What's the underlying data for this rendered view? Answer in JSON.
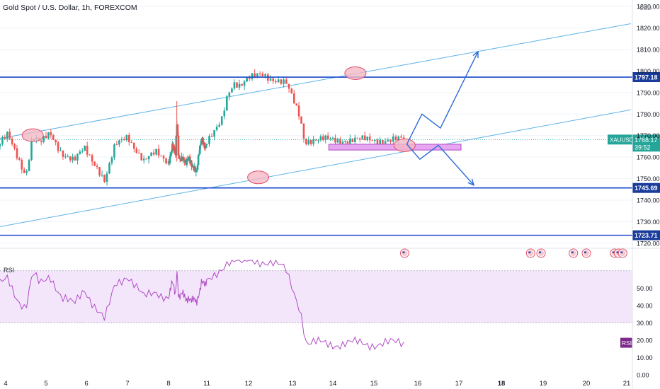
{
  "header": {
    "title": "Gold Spot / U.S. Dollar, 1h, FOREXCOM"
  },
  "colors": {
    "up": "#26a69a",
    "down": "#ef5350",
    "level_line": "#1848cc",
    "channel": "#5cb2e8",
    "zone": "#e6a7f0",
    "highlight": "#f4b8c6",
    "rsi": "#b04cc4",
    "rsi_band": "#f3e6fb",
    "arrow": "#2a6ad8"
  },
  "chart_data": [
    {
      "type": "candlestick",
      "title": "Gold Spot / U.S. Dollar, 1h, FOREXCOM",
      "symbol": "XAUUSD",
      "currency": "USD",
      "last_price": 1768.17,
      "countdown": "39:52",
      "ylim": [
        1718,
        1833
      ],
      "y_ticks": [
        1720,
        1730,
        1740,
        1750,
        1760,
        1770,
        1780,
        1790,
        1800,
        1810,
        1820,
        1830
      ],
      "y_tick_labels": [
        "1720.00",
        "1730.00",
        "1740.00",
        "1750.00",
        "1760.00",
        "1770.00",
        "1780.00",
        "1790.00",
        "1800.00",
        "1810.00",
        "1820.00",
        "1830.00"
      ],
      "x_ticks": [
        4,
        5,
        6,
        7,
        8,
        11,
        12,
        13,
        14,
        15,
        16,
        17,
        18,
        19,
        20,
        21
      ],
      "x_tick_labels": [
        "4",
        "5",
        "6",
        "7",
        "8",
        "11",
        "12",
        "13",
        "14",
        "15",
        "16",
        "17",
        "18",
        "19",
        "20",
        "21"
      ],
      "horizontal_levels": [
        {
          "value": 1797.18,
          "label": "1797.18"
        },
        {
          "value": 1745.69,
          "label": "1745.69"
        },
        {
          "value": 1723.71,
          "label": "1723.71"
        }
      ],
      "channel_lines": [
        {
          "from": [
            3.8,
            1768.5
          ],
          "to": [
            21.1,
            1822
          ]
        },
        {
          "from": [
            3.8,
            1727.5
          ],
          "to": [
            21.1,
            1782
          ]
        }
      ],
      "support_zone": {
        "x": [
          13.9,
          17.05
        ],
        "y": [
          1763.3,
          1766.0
        ]
      },
      "projections": [
        {
          "points": [
            [
              15.75,
              1766
            ],
            [
              16.1,
              1780
            ],
            [
              16.55,
              1773.5
            ],
            [
              17.45,
              1809
            ]
          ]
        },
        {
          "points": [
            [
              15.75,
              1766
            ],
            [
              16.05,
              1759
            ],
            [
              16.5,
              1765.5
            ],
            [
              17.35,
              1747
            ]
          ]
        }
      ],
      "highlight_points": [
        [
          4.67,
          1770.2
        ],
        [
          12.22,
          1750.6
        ],
        [
          14.55,
          1799.0
        ],
        [
          15.7,
          1765.5
        ]
      ],
      "event_markers": [
        15.7,
        18.7,
        18.95,
        19.7,
        20.0,
        20.7,
        20.8,
        20.9
      ],
      "path_keys": [
        [
          3.8,
          1765
        ],
        [
          4.05,
          1770
        ],
        [
          4.3,
          1760
        ],
        [
          4.5,
          1752
        ],
        [
          4.67,
          1770
        ],
        [
          4.85,
          1766
        ],
        [
          5.1,
          1771
        ],
        [
          5.4,
          1762
        ],
        [
          5.7,
          1758
        ],
        [
          5.95,
          1764
        ],
        [
          6.25,
          1756
        ],
        [
          6.45,
          1749
        ],
        [
          6.7,
          1765
        ],
        [
          7.0,
          1770
        ],
        [
          7.4,
          1758
        ],
        [
          7.7,
          1762
        ],
        [
          8.0,
          1758
        ],
        [
          8.3,
          1765
        ],
        [
          8.55,
          1760
        ],
        [
          8.65,
          1777
        ],
        [
          8.8,
          1760
        ],
        [
          9.1,
          1760
        ],
        [
          9.35,
          1756
        ],
        [
          9.6,
          1760
        ],
        [
          10.0,
          1755
        ],
        [
          10.2,
          1752
        ],
        [
          10.4,
          1762
        ],
        [
          10.6,
          1770
        ],
        [
          10.9,
          1764
        ],
        [
          11.15,
          1770
        ],
        [
          11.35,
          1777
        ],
        [
          11.5,
          1790
        ],
        [
          11.65,
          1795
        ],
        [
          11.8,
          1793
        ],
        [
          12.0,
          1796
        ],
        [
          12.3,
          1799
        ],
        [
          12.6,
          1796
        ],
        [
          12.85,
          1794
        ],
        [
          13.0,
          1787
        ],
        [
          13.2,
          1778
        ],
        [
          13.3,
          1767
        ],
        [
          13.35,
          1768
        ]
      ],
      "rsi": {
        "label": "RSI",
        "ylim": [
          0,
          66
        ],
        "band": [
          30,
          60
        ],
        "y_ticks": [
          0,
          10,
          20,
          30,
          40,
          50
        ],
        "y_tick_labels": [
          "0.00",
          "10.00",
          "20.00",
          "30.00",
          "40.00",
          "50.00"
        ],
        "marker_label": "RSI",
        "path_keys": [
          [
            3.8,
            50
          ],
          [
            4.05,
            56
          ],
          [
            4.3,
            44
          ],
          [
            4.5,
            38
          ],
          [
            4.67,
            58
          ],
          [
            4.85,
            52
          ],
          [
            5.1,
            58
          ],
          [
            5.4,
            44
          ],
          [
            5.7,
            40
          ],
          [
            5.95,
            50
          ],
          [
            6.25,
            38
          ],
          [
            6.45,
            31
          ],
          [
            6.7,
            52
          ],
          [
            7.0,
            58
          ],
          [
            7.4,
            44
          ],
          [
            7.7,
            48
          ],
          [
            8.0,
            45
          ],
          [
            8.3,
            52
          ],
          [
            8.55,
            46
          ],
          [
            8.65,
            62
          ],
          [
            8.8,
            46
          ],
          [
            9.1,
            46
          ],
          [
            9.35,
            42
          ],
          [
            9.6,
            46
          ],
          [
            10.0,
            42
          ],
          [
            10.2,
            40
          ],
          [
            10.4,
            48
          ],
          [
            10.6,
            56
          ],
          [
            10.9,
            50
          ],
          [
            11.15,
            56
          ],
          [
            11.35,
            62
          ],
          [
            11.5,
            66
          ],
          [
            11.65,
            66
          ],
          [
            11.8,
            64
          ],
          [
            12.0,
            66
          ],
          [
            12.3,
            66
          ],
          [
            12.6,
            64
          ],
          [
            12.85,
            60
          ],
          [
            13.0,
            50
          ],
          [
            13.2,
            38
          ],
          [
            13.3,
            24
          ],
          [
            13.35,
            18
          ]
        ]
      }
    }
  ]
}
